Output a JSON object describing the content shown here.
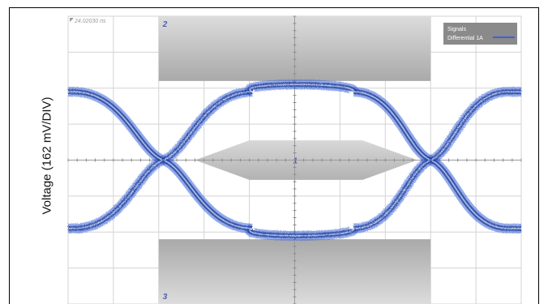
{
  "chart_data": {
    "type": "line",
    "title": "",
    "ylabel": "Voltage (162 mV/DIV)",
    "xlabel": "",
    "timestamp": "24.02030 ns",
    "grid": true,
    "grid_divisions": {
      "x": 10,
      "y": 8
    },
    "legend": {
      "placement": "top-right",
      "title": "Signals",
      "entries": [
        {
          "name": "Differential 1A",
          "color": "#3a64d8"
        }
      ]
    },
    "signal_levels_div": {
      "high": 1.9,
      "low": -1.9
    },
    "crossing_points_div": [
      -2.9,
      3.0
    ],
    "mask_regions": [
      {
        "label": "1",
        "shape": "hexagon"
      },
      {
        "label": "2",
        "shape": "rectangle",
        "position": "top"
      },
      {
        "label": "3",
        "shape": "rectangle",
        "position": "bottom"
      }
    ],
    "colors": {
      "eye": "#3a64d8",
      "eye_dark": "#213f9a",
      "mask": "#c6c6c6",
      "legend_bg": "#8a8a8a",
      "grid": "#d3d3d3"
    }
  }
}
